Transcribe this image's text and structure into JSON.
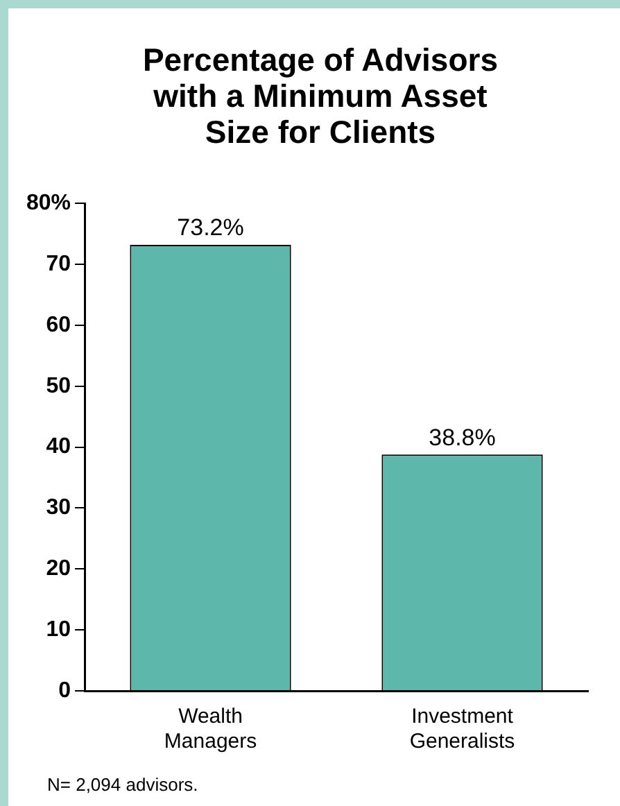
{
  "chart_data": {
    "type": "bar",
    "title": "Percentage of Advisors with a Minimum Asset Size for Clients",
    "categories": [
      "Wealth Managers",
      "Investment Generalists"
    ],
    "values": [
      73.2,
      38.8
    ],
    "color": "#5db7aa",
    "value_labels": [
      "73.2%",
      "38.8%"
    ],
    "ylim": [
      0,
      80
    ],
    "yticks": [
      0,
      10,
      20,
      30,
      40,
      50,
      60,
      70,
      {
        "value": 80,
        "label": "80%"
      }
    ],
    "grid": false,
    "legend": false,
    "annotations": [
      "N= 2,094 advisors."
    ]
  }
}
